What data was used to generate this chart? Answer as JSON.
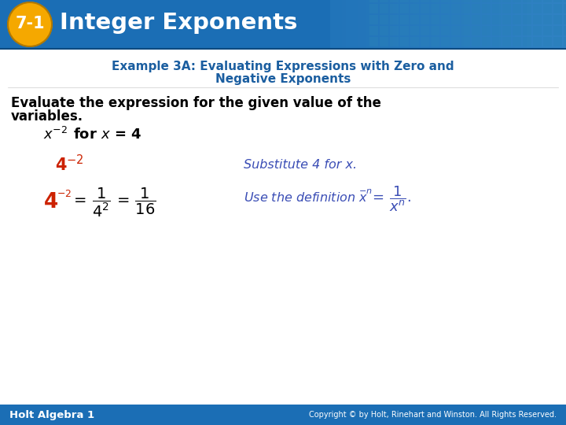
{
  "header_bg_color": "#1b6eb5",
  "header_text": "Integer Exponents",
  "badge_color": "#f5a800",
  "badge_text": "7-1",
  "example_title_line1": "Example 3A: Evaluating Expressions with Zero and",
  "example_title_line2": "Negative Exponents",
  "example_title_color": "#1b5ea0",
  "body_bg": "#ffffff",
  "instruction_text_line1": "Evaluate the expression for the given value of the",
  "instruction_text_line2": "variables.",
  "footer_bg": "#1b6eb5",
  "footer_left": "Holt Algebra 1",
  "footer_right": "Copyright © by Holt, Rinehart and Winston. All Rights Reserved.",
  "orange_color": "#cc2200",
  "blue_italic_color": "#3a4db5",
  "grid_color": "#3a85c8"
}
